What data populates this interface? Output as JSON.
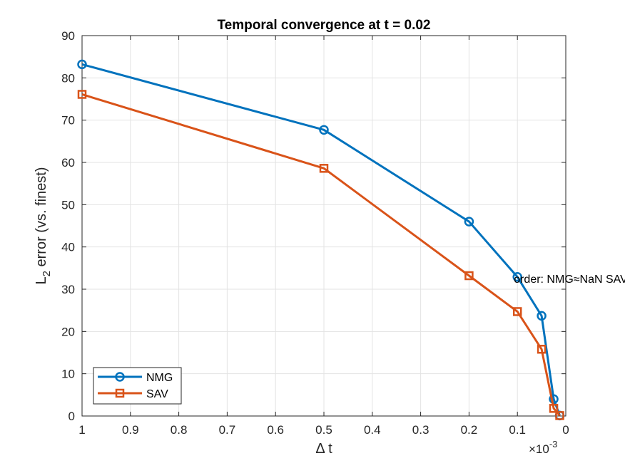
{
  "chart_data": {
    "type": "line",
    "title": "Temporal convergence at t = 0.02",
    "xlabel": "Δ t",
    "ylabel_main": "L",
    "ylabel_sub": "2",
    "ylabel_rest": " error (vs. finest)",
    "x_exponent_base": "×10",
    "x_exponent_power": "-3",
    "xlim": [
      0,
      1
    ],
    "x_reversed": true,
    "ylim": [
      0,
      90
    ],
    "grid": true,
    "legend_placement": "bottom-left",
    "x_ticks": [
      1,
      0.9,
      0.8,
      0.7,
      0.6,
      0.5,
      0.4,
      0.3,
      0.2,
      0.1,
      0
    ],
    "x_tick_labels": [
      "1",
      "0.9",
      "0.8",
      "0.7",
      "0.6",
      "0.5",
      "0.4",
      "0.3",
      "0.2",
      "0.1",
      "0"
    ],
    "y_ticks": [
      0,
      10,
      20,
      30,
      40,
      50,
      60,
      70,
      80,
      90
    ],
    "y_tick_labels": [
      "0",
      "10",
      "20",
      "30",
      "40",
      "50",
      "60",
      "70",
      "80",
      "90"
    ],
    "x": [
      1,
      0.5,
      0.2,
      0.1,
      0.05,
      0.025,
      0.0125
    ],
    "series": [
      {
        "name": "NMG",
        "color": "#0072BD",
        "marker": "circle",
        "values": [
          83.2,
          67.7,
          46.0,
          32.9,
          23.7,
          4.0,
          0.1
        ]
      },
      {
        "name": "SAV",
        "color": "#D95319",
        "marker": "square",
        "values": [
          76.1,
          58.6,
          33.2,
          24.7,
          15.8,
          1.8,
          0.1
        ]
      }
    ],
    "annotation": {
      "text": "order: NMG≈NaN  SAV≈NaN",
      "x": 0.1,
      "y": 32.5
    }
  }
}
